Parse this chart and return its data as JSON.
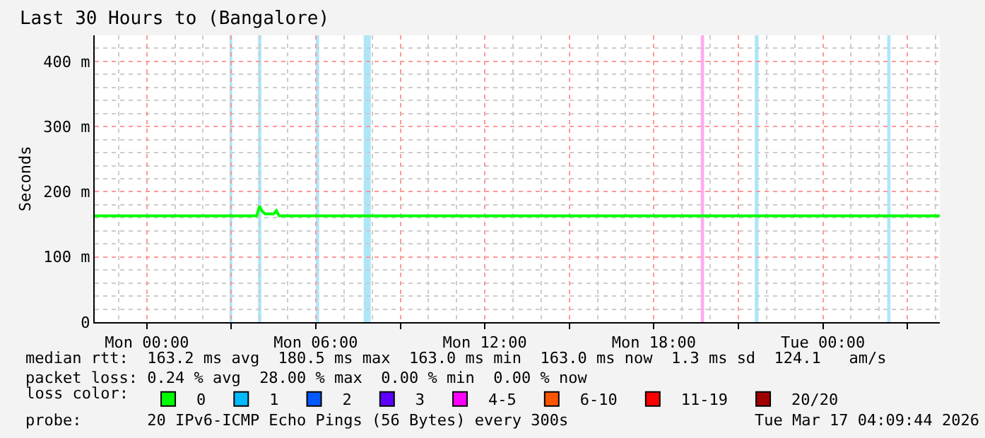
{
  "chart_data": {
    "type": "line",
    "title": "Last 30 Hours to (Bangalore)",
    "ylabel": "Seconds",
    "x": [
      "2026-03-15T22:09",
      "2026-03-16T03:54",
      "2026-03-16T04:00",
      "2026-03-16T04:06",
      "2026-03-16T04:12",
      "2026-03-16T04:30",
      "2026-03-16T04:36",
      "2026-03-16T04:42",
      "2026-03-17T04:09"
    ],
    "series": [
      {
        "color": "#00ff00",
        "values": [
          163,
          163,
          178,
          170,
          166,
          166,
          171,
          163,
          163
        ],
        "marker": "none"
      },
      {
        "name": "0",
        "type": "scatter",
        "marker": "square",
        "color": "#00ff00",
        "values": [
          null,
          null,
          null,
          null,
          null,
          null,
          null,
          null,
          null
        ]
      },
      {
        "name": "1",
        "type": "scatter",
        "marker": "square",
        "color": "#00bbff",
        "values": [
          null,
          null,
          null,
          null,
          null,
          null,
          null,
          null,
          null
        ]
      },
      {
        "name": "2",
        "type": "scatter",
        "marker": "square",
        "color": "#0059ff",
        "values": [
          null,
          null,
          null,
          null,
          null,
          null,
          null,
          null,
          null
        ]
      },
      {
        "name": "3",
        "type": "scatter",
        "marker": "square",
        "color": "#5e00ff",
        "values": [
          null,
          null,
          null,
          null,
          null,
          null,
          null,
          null,
          null
        ]
      },
      {
        "name": "4-5",
        "type": "scatter",
        "marker": "square",
        "color": "#ff00ff",
        "values": [
          null,
          null,
          null,
          null,
          null,
          null,
          null,
          null,
          null
        ]
      },
      {
        "name": "6-10",
        "type": "scatter",
        "marker": "square",
        "color": "#ff5500",
        "values": [
          null,
          null,
          null,
          null,
          null,
          null,
          null,
          null,
          null
        ]
      },
      {
        "name": "11-19",
        "type": "scatter",
        "marker": "square",
        "color": "#ff0000",
        "values": [
          null,
          null,
          null,
          null,
          null,
          null,
          null,
          null,
          null
        ]
      },
      {
        "name": "20/20",
        "type": "scatter",
        "marker": "square",
        "color": "#a10000",
        "values": [
          null,
          null,
          null,
          null,
          null,
          null,
          null,
          null,
          null
        ]
      }
    ],
    "xlim": [
      "2026-03-15T22:09",
      "2026-03-17T04:09"
    ],
    "xticks": [
      {
        "value": "2026-03-16T00:00",
        "label": "Mon 00:00"
      },
      {
        "value": "2026-03-16T03:00",
        "label": null
      },
      {
        "value": "2026-03-16T06:00",
        "label": "Mon 06:00"
      },
      {
        "value": "2026-03-16T09:00",
        "label": null
      },
      {
        "value": "2026-03-16T12:00",
        "label": "Mon 12:00"
      },
      {
        "value": "2026-03-16T15:00",
        "label": null
      },
      {
        "value": "2026-03-16T18:00",
        "label": "Mon 18:00"
      },
      {
        "value": "2026-03-16T21:00",
        "label": null
      },
      {
        "value": "2026-03-17T00:00",
        "label": "Tue 00:00"
      },
      {
        "value": "2026-03-17T03:00",
        "label": null
      }
    ],
    "ylim": [
      0,
      440
    ],
    "yticks": [
      0,
      {
        "value": 100,
        "label": "100 m"
      },
      {
        "value": 200,
        "label": "200 m"
      },
      {
        "value": 300,
        "label": "300 m"
      },
      {
        "value": 400,
        "label": "400 m"
      }
    ],
    "grid": true,
    "bands": [
      {
        "axis": "x",
        "from": "2026-03-16T02:56",
        "to": "2026-03-16T03:02",
        "color": "#aee6f8"
      },
      {
        "axis": "x",
        "from": "2026-03-16T03:57",
        "to": "2026-03-16T04:04",
        "color": "#aee6f8"
      },
      {
        "axis": "x",
        "from": "2026-03-16T06:00",
        "to": "2026-03-16T06:07",
        "color": "#aee6f8"
      },
      {
        "axis": "x",
        "from": "2026-03-16T07:42",
        "to": "2026-03-16T07:57",
        "color": "#aee6f8"
      },
      {
        "axis": "x",
        "from": "2026-03-16T19:40",
        "to": "2026-03-16T19:47",
        "color": "#ffaaee"
      },
      {
        "axis": "x",
        "from": "2026-03-16T21:35",
        "to": "2026-03-16T21:43",
        "color": "#aee6f8"
      },
      {
        "axis": "x",
        "from": "2026-03-17T02:17",
        "to": "2026-03-17T02:24",
        "color": "#aee6f8"
      }
    ],
    "legend": "bottom",
    "legend_title": "loss color:",
    "annotations": [
      "median rtt:  163.2 ms avg  180.5 ms max  163.0 ms min  163.0 ms now  1.3 ms sd  124.1   am/s",
      "packet loss: 0.24 % avg  28.00 % max  0.00 % min  0.00 % now",
      "probe:       20 IPv6-ICMP Echo Pings (56 Bytes) every 300s",
      "Tue Mar 17 04:09:44 2026"
    ]
  }
}
